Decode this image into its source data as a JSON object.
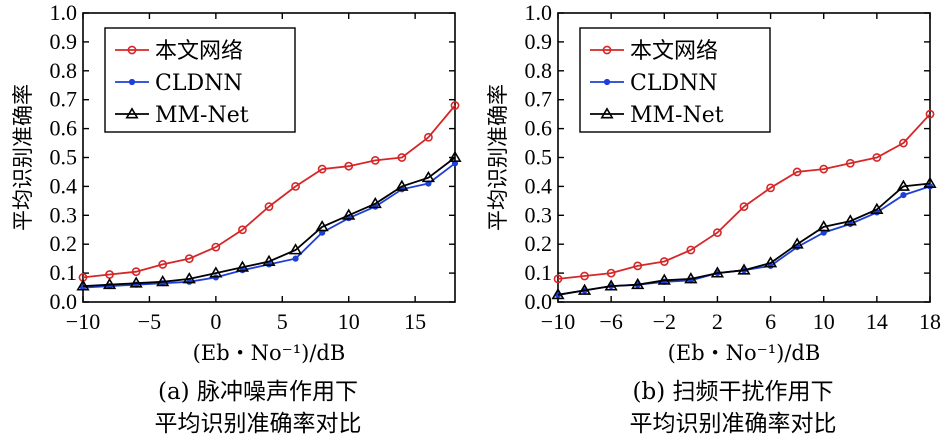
{
  "chart_data": [
    {
      "type": "line",
      "caption_line1": "(a) 脉冲噪声作用下",
      "caption_line2": "平均识别准确率对比",
      "xlabel": "(Eb・No⁻¹)/dB",
      "ylabel": "平均识别准确率",
      "xlim": [
        -10,
        18
      ],
      "ylim": [
        0.0,
        1.0
      ],
      "xticks": [
        -10,
        -5,
        0,
        5,
        10,
        15
      ],
      "xtick_labels": [
        "−10",
        "−5",
        "0",
        "5",
        "10",
        "15"
      ],
      "yticks": [
        0.0,
        0.1,
        0.2,
        0.3,
        0.4,
        0.5,
        0.6,
        0.7,
        0.8,
        0.9,
        1.0
      ],
      "ytick_labels": [
        "0.0",
        "0.1",
        "0.2",
        "0.3",
        "0.4",
        "0.5",
        "0.6",
        "0.7",
        "0.8",
        "0.9",
        "1.0"
      ],
      "legend_position": "top-left",
      "x": [
        -10,
        -8,
        -6,
        -4,
        -2,
        0,
        2,
        4,
        6,
        8,
        10,
        12,
        14,
        16,
        18
      ],
      "series": [
        {
          "name": "本文网络",
          "color": "#d62728",
          "marker": "circle",
          "values": [
            0.085,
            0.095,
            0.105,
            0.13,
            0.15,
            0.19,
            0.25,
            0.33,
            0.4,
            0.46,
            0.47,
            0.49,
            0.5,
            0.57,
            0.68
          ]
        },
        {
          "name": "CLDNN",
          "color": "#1f3fd6",
          "marker": "dot",
          "values": [
            0.05,
            0.055,
            0.06,
            0.065,
            0.07,
            0.085,
            0.11,
            0.13,
            0.15,
            0.24,
            0.29,
            0.33,
            0.39,
            0.41,
            0.48
          ]
        },
        {
          "name": "MM-Net",
          "color": "#000000",
          "marker": "triangle",
          "values": [
            0.055,
            0.06,
            0.065,
            0.07,
            0.08,
            0.1,
            0.12,
            0.14,
            0.18,
            0.26,
            0.3,
            0.34,
            0.4,
            0.43,
            0.5
          ]
        }
      ]
    },
    {
      "type": "line",
      "caption_line1": "(b) 扫频干扰作用下",
      "caption_line2": "平均识别准确率对比",
      "xlabel": "(Eb・No⁻¹)/dB",
      "ylabel": "平均识别准确率",
      "xlim": [
        -10,
        18
      ],
      "ylim": [
        0.0,
        1.0
      ],
      "xticks": [
        -10,
        -6,
        -2,
        2,
        6,
        10,
        14,
        18
      ],
      "xtick_labels": [
        "−10",
        "−6",
        "−2",
        "2",
        "6",
        "10",
        "14",
        "18"
      ],
      "yticks": [
        0.0,
        0.1,
        0.2,
        0.3,
        0.4,
        0.5,
        0.6,
        0.7,
        0.8,
        0.9,
        1.0
      ],
      "ytick_labels": [
        "0.0",
        "0.1",
        "0.2",
        "0.3",
        "0.4",
        "0.5",
        "0.6",
        "0.7",
        "0.8",
        "0.9",
        "1.0"
      ],
      "legend_position": "top-left",
      "x": [
        -10,
        -8,
        -6,
        -4,
        -2,
        0,
        2,
        4,
        6,
        8,
        10,
        12,
        14,
        16,
        18
      ],
      "series": [
        {
          "name": "本文网络",
          "color": "#d62728",
          "marker": "circle",
          "values": [
            0.08,
            0.09,
            0.1,
            0.125,
            0.14,
            0.18,
            0.24,
            0.33,
            0.395,
            0.45,
            0.46,
            0.48,
            0.5,
            0.55,
            0.65
          ]
        },
        {
          "name": "CLDNN",
          "color": "#1f3fd6",
          "marker": "dot",
          "values": [
            0.025,
            0.04,
            0.055,
            0.06,
            0.07,
            0.075,
            0.1,
            0.11,
            0.125,
            0.19,
            0.24,
            0.27,
            0.31,
            0.37,
            0.4
          ]
        },
        {
          "name": "MM-Net",
          "color": "#000000",
          "marker": "triangle",
          "values": [
            0.025,
            0.04,
            0.055,
            0.06,
            0.075,
            0.08,
            0.1,
            0.11,
            0.135,
            0.2,
            0.26,
            0.28,
            0.32,
            0.4,
            0.41
          ]
        }
      ]
    }
  ]
}
